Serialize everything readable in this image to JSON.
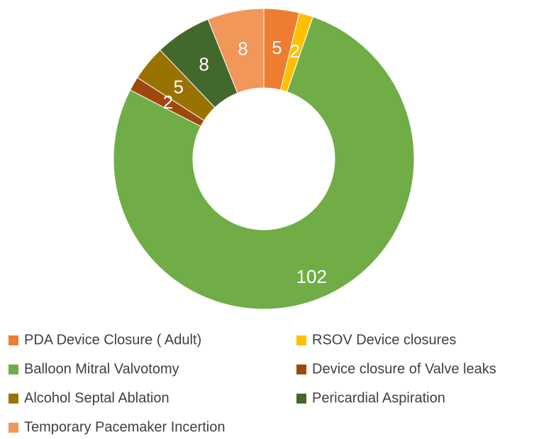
{
  "chart_data": {
    "type": "donut",
    "categories": [
      "PDA Device Closure ( Adult)",
      "RSOV Device closures",
      "Balloon Mitral Valvotomy",
      "Device closure of Valve leaks",
      "Alcohol Septal Ablation",
      "Pericardial Aspiration",
      "Temporary Pacemaker Incertion"
    ],
    "values": [
      5,
      2,
      102,
      2,
      5,
      8,
      8
    ],
    "colors": [
      "#ed7d31",
      "#ffc000",
      "#70ad47",
      "#9e480e",
      "#997300",
      "#43682b",
      "#f1975a"
    ],
    "legend": "bottom"
  }
}
